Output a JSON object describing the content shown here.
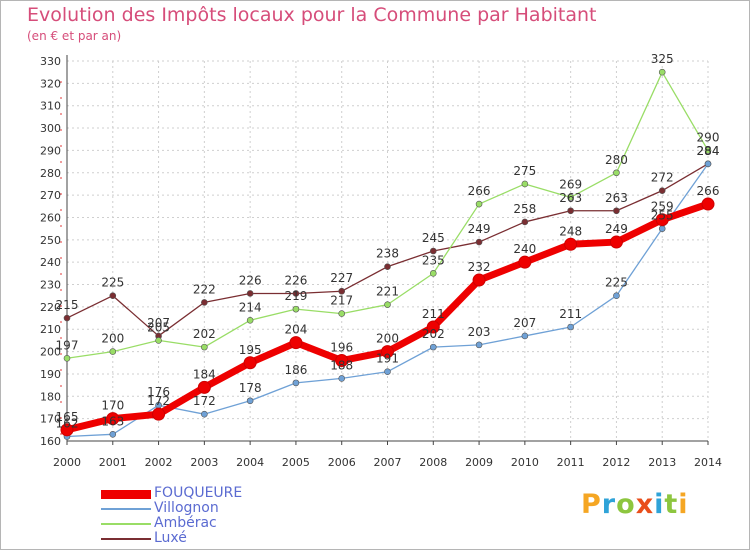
{
  "header": {
    "title": "Evolution des Impôts locaux pour la Commune par Habitant",
    "subtitle": "(en € et par an)"
  },
  "logo": {
    "letters": [
      "P",
      "r",
      "o",
      "x",
      "i",
      "t",
      "i"
    ],
    "colors": [
      "#f5a623",
      "#2fa3d8",
      "#8dc63f",
      "#e94e1b",
      "#2fa3d8",
      "#8dc63f",
      "#f5a623"
    ]
  },
  "chart_data": {
    "type": "line",
    "title": "Evolution des Impôts locaux pour la Commune par Habitant",
    "subtitle": "(en € et par an)",
    "xlabel": "",
    "ylabel": "",
    "x": [
      "2000",
      "2001",
      "2002",
      "2003",
      "2004",
      "2005",
      "2006",
      "2007",
      "2008",
      "2009",
      "2010",
      "2011",
      "2012",
      "2013",
      "2014"
    ],
    "ylim": [
      160,
      330
    ],
    "yticks": [
      160,
      170,
      180,
      190,
      200,
      210,
      220,
      230,
      240,
      250,
      260,
      270,
      280,
      290,
      300,
      310,
      320,
      330
    ],
    "grid": true,
    "legend_position": "bottom-left",
    "series": [
      {
        "name": "FOUQUEURE",
        "color": "#ee0000",
        "values": [
          165,
          170,
          172,
          184,
          195,
          204,
          196,
          200,
          211,
          232,
          240,
          248,
          249,
          259,
          266
        ],
        "labels": [
          "165",
          "170",
          "172",
          "184",
          "195",
          "204",
          "196",
          "200",
          "211",
          "232",
          "240",
          "248",
          "249",
          "259",
          "266"
        ]
      },
      {
        "name": "Villognon",
        "color": "#6fa1d6",
        "values": [
          162,
          163,
          176,
          172,
          178,
          186,
          188,
          191,
          202,
          203,
          207,
          211,
          225,
          255,
          284
        ],
        "labels": [
          "162",
          "163",
          "176",
          "172",
          "178",
          "186",
          "188",
          "191",
          "202",
          "203",
          "207",
          "211",
          "225",
          "255",
          "284"
        ]
      },
      {
        "name": "Ambérac",
        "color": "#99dd66",
        "values": [
          197,
          200,
          205,
          202,
          214,
          219,
          217,
          221,
          235,
          266,
          275,
          269,
          280,
          325,
          290
        ],
        "labels": [
          "197",
          "200",
          "205",
          "202",
          "214",
          "219",
          "217",
          "221",
          "235",
          "266",
          "275",
          "269",
          "280",
          "325",
          "290"
        ]
      },
      {
        "name": "Luxé",
        "color": "#7a2e32",
        "values": [
          215,
          225,
          207,
          222,
          226,
          226,
          227,
          238,
          245,
          249,
          258,
          263,
          263,
          272,
          284
        ],
        "labels": [
          "215",
          "225",
          "207",
          "222",
          "226",
          "226",
          "227",
          "238",
          "245",
          "249",
          "258",
          "263",
          "263",
          "272",
          "284"
        ]
      }
    ]
  }
}
